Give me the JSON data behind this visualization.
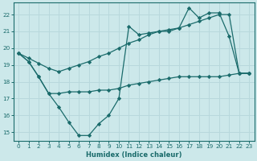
{
  "xlabel": "Humidex (Indice chaleur)",
  "background_color": "#cce8ea",
  "line_color": "#1a6b6b",
  "grid_color": "#b8d8dc",
  "xlim": [
    -0.5,
    23.5
  ],
  "ylim": [
    14.5,
    22.7
  ],
  "xticks": [
    0,
    1,
    2,
    3,
    4,
    5,
    6,
    7,
    8,
    9,
    10,
    11,
    12,
    13,
    14,
    15,
    16,
    17,
    18,
    19,
    20,
    21,
    22,
    23
  ],
  "yticks": [
    15,
    16,
    17,
    18,
    19,
    20,
    21,
    22
  ],
  "line_straight_x": [
    0,
    1,
    2,
    3,
    4,
    5,
    6,
    7,
    8,
    9,
    10,
    11,
    12,
    13,
    14,
    15,
    16,
    17,
    18,
    19,
    20,
    21,
    22,
    23
  ],
  "line_straight_y": [
    19.7,
    19.4,
    19.1,
    18.8,
    18.6,
    18.8,
    19.0,
    19.2,
    19.5,
    19.7,
    20.0,
    20.3,
    20.5,
    20.8,
    21.0,
    21.1,
    21.2,
    21.4,
    21.6,
    21.8,
    22.0,
    22.0,
    18.5,
    18.5
  ],
  "line_dip_x": [
    0,
    1,
    2,
    3,
    4,
    5,
    6,
    7,
    8,
    9,
    10,
    11,
    12,
    13,
    14,
    15,
    16,
    17,
    18,
    19,
    20,
    21,
    22,
    23
  ],
  "line_dip_y": [
    19.7,
    19.2,
    18.3,
    17.3,
    16.5,
    15.6,
    14.8,
    14.8,
    15.5,
    16.0,
    17.0,
    21.3,
    20.8,
    20.9,
    21.0,
    21.0,
    21.2,
    22.4,
    21.8,
    22.1,
    22.1,
    20.7,
    18.5,
    18.5
  ],
  "line_flat_x": [
    0,
    1,
    2,
    3,
    4,
    5,
    6,
    7,
    8,
    9,
    10,
    11,
    12,
    13,
    14,
    15,
    16,
    17,
    18,
    19,
    20,
    21,
    22,
    23
  ],
  "line_flat_y": [
    19.7,
    19.2,
    18.3,
    17.3,
    17.3,
    17.4,
    17.4,
    17.4,
    17.5,
    17.5,
    17.6,
    17.8,
    17.9,
    18.0,
    18.1,
    18.2,
    18.3,
    18.3,
    18.3,
    18.3,
    18.3,
    18.4,
    18.5,
    18.5
  ]
}
